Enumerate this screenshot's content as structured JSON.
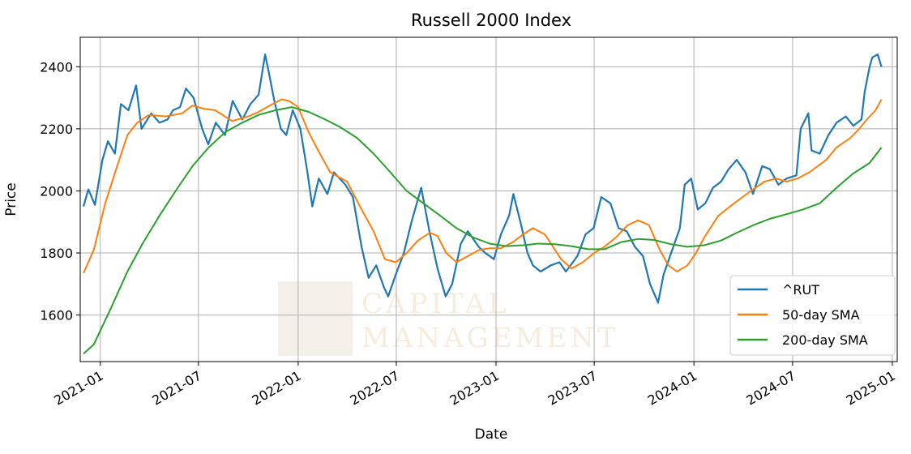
{
  "chart_data": {
    "type": "line",
    "title": "Russell 2000 Index",
    "xlabel": "Date",
    "ylabel": "Price",
    "xlim": [
      "2020-11-25",
      "2025-01-10"
    ],
    "ylim": [
      1450,
      2495
    ],
    "x_ticks": [
      "2021-01",
      "2021-07",
      "2022-01",
      "2022-07",
      "2023-01",
      "2023-07",
      "2024-01",
      "2024-07",
      "2025-01"
    ],
    "y_ticks": [
      1600,
      1800,
      2000,
      2200,
      2400
    ],
    "grid": true,
    "legend_position": "lower-right",
    "series": [
      {
        "name": "^RUT",
        "color": "#1f77b4",
        "x": [
          "2020-12-01",
          "2020-12-10",
          "2020-12-22",
          "2021-01-05",
          "2021-01-15",
          "2021-01-28",
          "2021-02-08",
          "2021-02-22",
          "2021-03-08",
          "2021-03-18",
          "2021-04-05",
          "2021-04-20",
          "2021-05-05",
          "2021-05-15",
          "2021-05-28",
          "2021-06-08",
          "2021-06-22",
          "2021-07-08",
          "2021-07-19",
          "2021-08-02",
          "2021-08-19",
          "2021-09-02",
          "2021-09-20",
          "2021-10-05",
          "2021-10-20",
          "2021-11-01",
          "2021-11-08",
          "2021-11-18",
          "2021-11-30",
          "2021-12-10",
          "2021-12-22",
          "2022-01-05",
          "2022-01-18",
          "2022-01-27",
          "2022-02-08",
          "2022-02-24",
          "2022-03-08",
          "2022-03-29",
          "2022-04-12",
          "2022-04-28",
          "2022-05-11",
          "2022-05-25",
          "2022-06-08",
          "2022-06-16",
          "2022-06-30",
          "2022-07-15",
          "2022-07-29",
          "2022-08-16",
          "2022-08-31",
          "2022-09-15",
          "2022-09-30",
          "2022-10-12",
          "2022-10-28",
          "2022-11-10",
          "2022-11-30",
          "2022-12-12",
          "2022-12-28",
          "2023-01-10",
          "2023-01-25",
          "2023-02-02",
          "2023-02-15",
          "2023-02-28",
          "2023-03-10",
          "2023-03-24",
          "2023-04-12",
          "2023-04-28",
          "2023-05-10",
          "2023-05-31",
          "2023-06-15",
          "2023-06-30",
          "2023-07-14",
          "2023-07-31",
          "2023-08-15",
          "2023-08-30",
          "2023-09-14",
          "2023-09-29",
          "2023-10-12",
          "2023-10-27",
          "2023-11-06",
          "2023-11-20",
          "2023-12-06",
          "2023-12-15",
          "2023-12-27",
          "2024-01-08",
          "2024-01-22",
          "2024-02-05",
          "2024-02-20",
          "2024-03-05",
          "2024-03-20",
          "2024-04-05",
          "2024-04-19",
          "2024-05-06",
          "2024-05-20",
          "2024-06-05",
          "2024-06-20",
          "2024-07-08",
          "2024-07-16",
          "2024-07-30",
          "2024-08-05",
          "2024-08-20",
          "2024-09-05",
          "2024-09-20",
          "2024-10-07",
          "2024-10-21",
          "2024-11-05",
          "2024-11-11",
          "2024-11-20",
          "2024-11-25",
          "2024-12-05",
          "2024-12-12"
        ],
        "values": [
          1950,
          2005,
          1955,
          2100,
          2160,
          2120,
          2280,
          2260,
          2340,
          2200,
          2250,
          2220,
          2230,
          2260,
          2270,
          2330,
          2300,
          2200,
          2150,
          2220,
          2180,
          2290,
          2230,
          2280,
          2310,
          2440,
          2380,
          2290,
          2200,
          2180,
          2260,
          2200,
          2060,
          1950,
          2040,
          1990,
          2060,
          2020,
          1980,
          1820,
          1720,
          1760,
          1690,
          1660,
          1730,
          1800,
          1900,
          2010,
          1870,
          1750,
          1660,
          1700,
          1830,
          1870,
          1820,
          1800,
          1780,
          1860,
          1920,
          1990,
          1900,
          1800,
          1760,
          1740,
          1760,
          1770,
          1740,
          1790,
          1860,
          1880,
          1980,
          1960,
          1880,
          1870,
          1820,
          1790,
          1700,
          1640,
          1730,
          1800,
          1880,
          2020,
          2040,
          1940,
          1960,
          2010,
          2030,
          2070,
          2100,
          2060,
          1990,
          2080,
          2070,
          2020,
          2040,
          2050,
          2200,
          2250,
          2130,
          2120,
          2180,
          2220,
          2240,
          2210,
          2230,
          2320,
          2400,
          2430,
          2440,
          2400
        ]
      },
      {
        "name": "50-day SMA",
        "color": "#ff7f0e",
        "x": [
          "2020-12-01",
          "2020-12-20",
          "2021-01-10",
          "2021-02-01",
          "2021-02-20",
          "2021-03-10",
          "2021-04-01",
          "2021-05-01",
          "2021-06-01",
          "2021-06-20",
          "2021-07-10",
          "2021-08-01",
          "2021-09-01",
          "2021-10-01",
          "2021-10-20",
          "2021-11-15",
          "2021-12-01",
          "2021-12-15",
          "2022-01-01",
          "2022-01-20",
          "2022-02-10",
          "2022-03-01",
          "2022-04-01",
          "2022-05-01",
          "2022-05-20",
          "2022-06-10",
          "2022-06-30",
          "2022-07-20",
          "2022-08-10",
          "2022-09-01",
          "2022-09-15",
          "2022-10-01",
          "2022-10-20",
          "2022-11-10",
          "2022-12-01",
          "2022-12-20",
          "2023-01-10",
          "2023-02-01",
          "2023-02-20",
          "2023-03-10",
          "2023-04-01",
          "2023-05-01",
          "2023-05-20",
          "2023-06-10",
          "2023-07-01",
          "2023-07-20",
          "2023-08-10",
          "2023-09-01",
          "2023-09-20",
          "2023-10-10",
          "2023-10-30",
          "2023-11-15",
          "2023-12-01",
          "2023-12-20",
          "2024-01-05",
          "2024-01-20",
          "2024-02-15",
          "2024-03-15",
          "2024-04-15",
          "2024-05-10",
          "2024-06-01",
          "2024-06-20",
          "2024-07-10",
          "2024-08-01",
          "2024-09-01",
          "2024-09-20",
          "2024-10-15",
          "2024-11-01",
          "2024-11-15",
          "2024-12-01",
          "2024-12-12"
        ],
        "values": [
          1735,
          1810,
          1960,
          2080,
          2180,
          2220,
          2245,
          2240,
          2250,
          2275,
          2265,
          2260,
          2225,
          2240,
          2255,
          2280,
          2295,
          2290,
          2270,
          2190,
          2120,
          2060,
          2030,
          1930,
          1870,
          1780,
          1770,
          1800,
          1840,
          1865,
          1855,
          1800,
          1770,
          1790,
          1810,
          1815,
          1815,
          1835,
          1860,
          1880,
          1860,
          1780,
          1750,
          1770,
          1800,
          1820,
          1850,
          1890,
          1905,
          1890,
          1810,
          1760,
          1740,
          1760,
          1800,
          1850,
          1920,
          1960,
          2000,
          2030,
          2040,
          2030,
          2040,
          2060,
          2100,
          2140,
          2170,
          2200,
          2230,
          2260,
          2295
        ]
      },
      {
        "name": "200-day SMA",
        "color": "#2ca02c",
        "x": [
          "2020-12-01",
          "2020-12-20",
          "2021-01-20",
          "2021-02-20",
          "2021-03-20",
          "2021-04-20",
          "2021-05-20",
          "2021-06-20",
          "2021-07-20",
          "2021-08-20",
          "2021-09-20",
          "2021-10-20",
          "2021-11-20",
          "2021-12-20",
          "2022-01-20",
          "2022-02-20",
          "2022-03-20",
          "2022-04-20",
          "2022-05-20",
          "2022-06-20",
          "2022-07-20",
          "2022-08-20",
          "2022-09-20",
          "2022-10-20",
          "2022-11-20",
          "2022-12-20",
          "2023-01-20",
          "2023-02-20",
          "2023-03-20",
          "2023-04-20",
          "2023-05-20",
          "2023-06-20",
          "2023-07-20",
          "2023-08-20",
          "2023-09-20",
          "2023-10-20",
          "2023-11-20",
          "2023-12-20",
          "2024-01-20",
          "2024-02-20",
          "2024-03-20",
          "2024-04-20",
          "2024-05-20",
          "2024-06-20",
          "2024-07-20",
          "2024-08-20",
          "2024-09-20",
          "2024-10-20",
          "2024-11-20",
          "2024-12-12"
        ],
        "values": [
          1475,
          1505,
          1620,
          1740,
          1830,
          1920,
          2000,
          2080,
          2140,
          2190,
          2220,
          2245,
          2260,
          2270,
          2255,
          2230,
          2205,
          2170,
          2120,
          2060,
          2000,
          1960,
          1920,
          1880,
          1850,
          1830,
          1822,
          1825,
          1830,
          1828,
          1822,
          1812,
          1812,
          1835,
          1845,
          1842,
          1828,
          1820,
          1825,
          1840,
          1865,
          1890,
          1910,
          1925,
          1940,
          1960,
          2010,
          2055,
          2090,
          2140
        ]
      }
    ]
  },
  "watermark": {
    "logo_top": "10",
    "logo_bottom": "35",
    "line1": "CAPITAL",
    "line2": "MANAGEMENT"
  }
}
